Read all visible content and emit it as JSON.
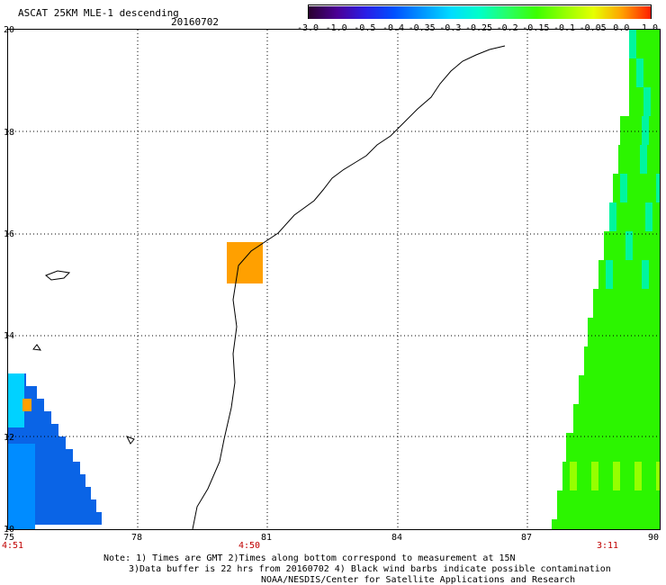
{
  "header": {
    "title": "ASCAT 25KM MLE-1 descending",
    "date": "20160702"
  },
  "colorbar": {
    "labels": [
      "-3.0",
      "-1.0",
      "-0.5",
      "-0.4",
      "-0.35",
      "-0.3",
      "-0.25",
      "-0.2",
      "-0.15",
      "-0.1",
      "-0.05",
      "0.0",
      "1.0"
    ],
    "colors": [
      "#2a0030",
      "#4b0096",
      "#2a1ee6",
      "#0050ff",
      "#0096ff",
      "#00dcff",
      "#00ffc8",
      "#28ff64",
      "#3cff00",
      "#96ff00",
      "#e6ff00",
      "#ffa000",
      "#ff2000"
    ]
  },
  "map": {
    "lat_labels": [
      "20",
      "18",
      "16",
      "14",
      "12",
      "10"
    ],
    "lon_labels": [
      "75",
      "78",
      "81",
      "84",
      "87",
      "90"
    ],
    "time_labels": [
      "4:51",
      "4:50",
      "3:11"
    ],
    "colors": {
      "blue_swath": "#0a64e6",
      "cyan": "#00d2ff",
      "orange": "#ffa000",
      "green_swath": "#2cf500",
      "teal": "#00f5a0",
      "yellow_green": "#96ff00"
    }
  },
  "footer": {
    "line1": "Note: 1) Times are GMT 2)Times along bottom correspond to measurement at 15N",
    "line2": "3)Data buffer is 22 hrs from 20160702 4) Black wind barbs indicate possible contamination",
    "line3": "NOAA/NESDIS/Center for Satellite Applications and Research"
  }
}
